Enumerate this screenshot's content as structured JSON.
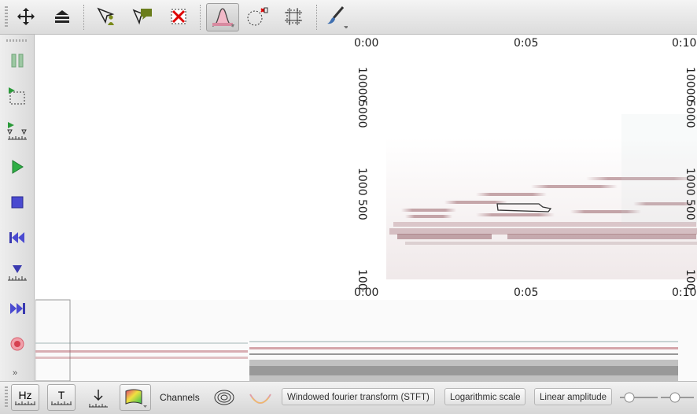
{
  "toolbar_top": {
    "tools": [
      "move-icon",
      "layers-icon",
      "person-select-icon",
      "comment-icon",
      "delete-selection-icon",
      "peak-filter-icon",
      "circle-select-icon",
      "rectangle-select-icon",
      "brush-icon"
    ]
  },
  "toolbar_left": {
    "tools": [
      "pause-icon",
      "play-selection-icon",
      "play-marked-icon",
      "play-icon",
      "stop-icon",
      "rewind-icon",
      "marker-icon",
      "fast-forward-icon",
      "record-icon"
    ]
  },
  "view": {
    "time_axis_top": [
      "0:00",
      "0:05",
      "0:10"
    ],
    "time_axis_bottom": [
      "0:00",
      "0:05",
      "0:10"
    ],
    "freq_labels_left": [
      "10000",
      "5000",
      "1000",
      "500",
      "100"
    ],
    "freq_labels_right": [
      "10000",
      "5000",
      "1000",
      "500",
      "100"
    ]
  },
  "toolbar_bottom": {
    "hz_label": "Hz",
    "t_label": "T",
    "channels_label": "Channels",
    "transform_label": "Windowed fourier transform (STFT)",
    "scale_label": "Logarithmic scale",
    "amplitude_label": "Linear amplitude",
    "colors": {
      "accent_pink": "#c07a8c",
      "waveform_dark": "#5a2b2b"
    }
  }
}
